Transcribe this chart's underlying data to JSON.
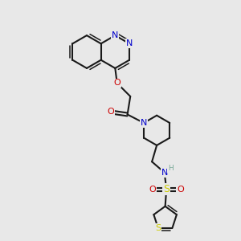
{
  "bg_color": "#e8e8e8",
  "bond_color": "#1a1a1a",
  "nitrogen_color": "#0000cc",
  "oxygen_color": "#cc0000",
  "sulfur_color": "#cccc00",
  "h_color": "#7aaa99",
  "fig_size": [
    3.0,
    3.0
  ],
  "dpi": 100,
  "xlim": [
    0,
    10
  ],
  "ylim": [
    0,
    10
  ]
}
